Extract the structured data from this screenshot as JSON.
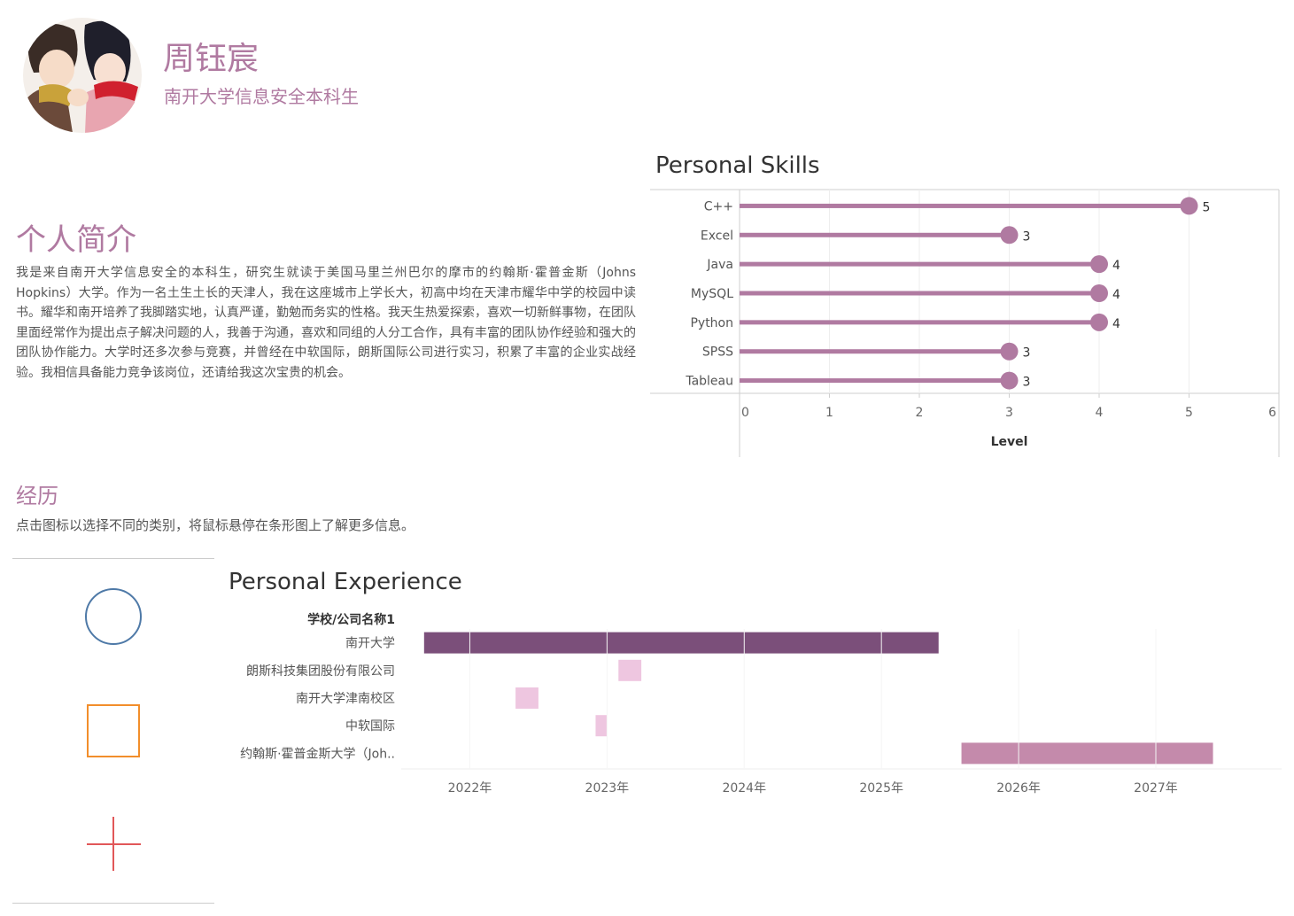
{
  "profile": {
    "name": "周钰宸",
    "subtitle": "南开大学信息安全本科生"
  },
  "intro": {
    "title": "个人简介",
    "text": "我是来自南开大学信息安全的本科生，研究生就读于美国马里兰州巴尔的摩市的约翰斯·霍普金斯（Johns Hopkins）大学。作为一名土生土长的天津人，我在这座城市上学长大，初高中均在天津市耀华中学的校园中读书。耀华和南开培养了我脚踏实地，认真严谨，勤勉而务实的性格。我天生热爱探索，喜欢一切新鲜事物，在团队里面经常作为提出点子解决问题的人，我善于沟通，喜欢和同组的人分工合作，具有丰富的团队协作经验和强大的团队协作能力。大学时还多次参与竞赛，并曾经在中软国际，朗斯国际公司进行实习，积累了丰富的企业实战经验。我相信具备能力竞争该岗位，还请给我这次宝贵的机会。"
  },
  "experience_section": {
    "title": "经历",
    "hint": "点击图标以选择不同的类别，将鼠标悬停在条形图上了解更多信息。"
  },
  "legend_icons": [
    {
      "icon": "circle-icon",
      "color": "#4e79a7"
    },
    {
      "icon": "square-icon",
      "color": "#f28e2b"
    },
    {
      "icon": "plus-icon",
      "color": "#e15759"
    }
  ],
  "colors": {
    "accent": "#b07aa1",
    "skill_bar": "#b07aa1",
    "exp_dark": "#7b4f7a",
    "exp_light": "#eec6e0",
    "exp_mid": "#c48aab"
  },
  "chart_data": [
    {
      "type": "bar",
      "title": "Personal Skills",
      "orientation": "horizontal",
      "categories": [
        "C++",
        "Excel",
        "Java",
        "MySQL",
        "Python",
        "SPSS",
        "Tableau"
      ],
      "values": [
        5,
        3,
        4,
        4,
        4,
        3,
        3
      ],
      "xlabel": "Level",
      "xlim": [
        0,
        6
      ],
      "xticks": [
        "0",
        "1",
        "2",
        "3",
        "4",
        "5",
        "6"
      ],
      "data_labels": [
        "5",
        "3",
        "4",
        "4",
        "4",
        "3",
        "3"
      ],
      "grid": true
    },
    {
      "type": "bar",
      "title": "Personal Experience",
      "subtype": "gantt",
      "row_header": "学校/公司名称1",
      "categories": [
        "南开大学",
        "朗斯科技集团股份有限公司",
        "南开大学津南校区",
        "中软国际",
        "约翰斯·霍普金斯大学（Joh.."
      ],
      "series": [
        {
          "start": "2021-09",
          "end": "2025-06",
          "color": "#7b4f7a"
        },
        {
          "start": "2023-02",
          "end": "2023-04",
          "color": "#eec6e0"
        },
        {
          "start": "2022-05",
          "end": "2022-07",
          "color": "#eec6e0"
        },
        {
          "start": "2022-12",
          "end": "2023-01",
          "color": "#eec6e0"
        },
        {
          "start": "2025-08",
          "end": "2027-06",
          "color": "#c48aab"
        }
      ],
      "xlim": [
        "2021-07",
        "2027-12"
      ],
      "xticks": [
        "2022年",
        "2023年",
        "2024年",
        "2025年",
        "2026年",
        "2027年"
      ]
    }
  ]
}
